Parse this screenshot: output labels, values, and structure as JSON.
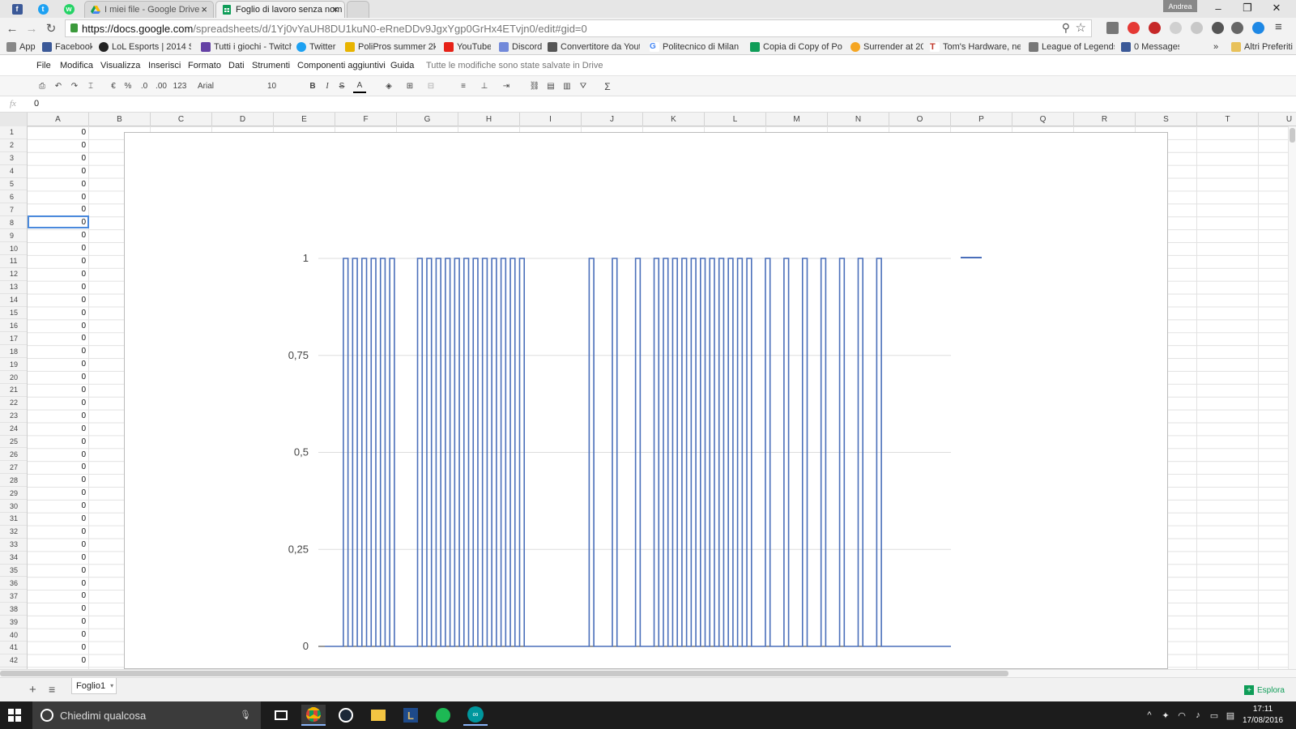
{
  "browser": {
    "user": "Andrea",
    "tabs": [
      {
        "label": "I miei file - Google Drive",
        "active": false
      },
      {
        "label": "Foglio di lavoro senza nom",
        "active": true
      }
    ],
    "url_host": "https://docs.google.com",
    "url_path": "/spreadsheets/d/1Yj0vYaUH8DU1kuN0-eRneDDv9JgxYgp0GrHx4ETvjn0/edit#gid=0",
    "bookmarks": [
      {
        "label": "App",
        "color": "#888888"
      },
      {
        "label": "Facebook",
        "color": "#3b5998"
      },
      {
        "label": "LoL Esports | 2014 Se",
        "color": "#222222"
      },
      {
        "label": "Tutti i giochi - Twitch",
        "color": "#6441a5"
      },
      {
        "label": "Twitter",
        "color": "#1da1f2"
      },
      {
        "label": "PoliPros summer 2k16",
        "color": "#e8b400"
      },
      {
        "label": "YouTube",
        "color": "#e62117"
      },
      {
        "label": "Discord",
        "color": "#7289da"
      },
      {
        "label": "Convertitore da Youtu",
        "color": "#555555"
      },
      {
        "label": "Politecnico di Milano",
        "color": "#4285f4"
      },
      {
        "label": "Copia di Copy of Poke",
        "color": "#0f9d58"
      },
      {
        "label": "Surrender at 20",
        "color": "#f5a623"
      },
      {
        "label": "Tom's Hardware, new",
        "color": "#c0392b"
      },
      {
        "label": "League of Legends",
        "color": "#555555"
      },
      {
        "label": "0 Messages",
        "color": "#3b5998"
      }
    ],
    "more_bookmarks": "»",
    "other_bookmarks": "Altri Preferiti"
  },
  "menu": {
    "items": [
      "File",
      "Modifica",
      "Visualizza",
      "Inserisci",
      "Formato",
      "Dati",
      "Strumenti",
      "Componenti aggiuntivi",
      "Guida"
    ],
    "save_status": "Tutte le modifiche sono state salvate in Drive"
  },
  "format_toolbar": {
    "currency": "€",
    "percent": "%",
    "dec_decrease": ".0",
    "dec_increase": ".00",
    "number_format": "123",
    "font": "Arial",
    "font_size": "10",
    "bold": "B",
    "italic": "I",
    "strike": "S",
    "text_color": "A",
    "functions": "Σ"
  },
  "formula_bar": {
    "fx": "fx",
    "value": "0"
  },
  "grid": {
    "columns": [
      "A",
      "B",
      "C",
      "D",
      "E",
      "F",
      "G",
      "H",
      "I",
      "J",
      "K",
      "L",
      "M",
      "N",
      "O",
      "P",
      "Q",
      "R",
      "S",
      "T",
      "U"
    ],
    "rows": [
      "1",
      "2",
      "3",
      "4",
      "5",
      "6",
      "7",
      "8",
      "9",
      "10",
      "11",
      "12",
      "13",
      "14",
      "15",
      "16",
      "17",
      "18",
      "19",
      "20",
      "21",
      "22",
      "23",
      "24",
      "25",
      "26",
      "27",
      "28",
      "29",
      "30",
      "31",
      "32",
      "33",
      "34",
      "35",
      "36",
      "37",
      "38",
      "39",
      "40",
      "41",
      "42"
    ],
    "column_a_values": [
      "0",
      "0",
      "0",
      "0",
      "0",
      "0",
      "0",
      "0",
      "0",
      "0",
      "0",
      "0",
      "0",
      "0",
      "0",
      "0",
      "0",
      "0",
      "0",
      "0",
      "0",
      "0",
      "0",
      "0",
      "0",
      "0",
      "0",
      "0",
      "0",
      "0",
      "0",
      "0",
      "0",
      "0",
      "0",
      "0",
      "0",
      "0",
      "0",
      "0",
      "0",
      "0"
    ],
    "selected_row": 8
  },
  "chart_data": {
    "type": "line",
    "title": "",
    "xlabel": "",
    "ylabel": "",
    "ylim": [
      0,
      1
    ],
    "yticks": [
      "0",
      "0,25",
      "0,5",
      "0,75",
      "1"
    ],
    "ytick_values": [
      0,
      0.25,
      0.5,
      0.75,
      1
    ],
    "grid": true,
    "legend": "right",
    "color": "#4a6fba",
    "x": [
      0,
      1,
      2,
      3,
      4,
      5,
      6,
      7,
      8,
      9,
      10,
      11,
      12,
      13,
      14,
      15,
      16,
      17,
      18,
      19,
      20,
      21,
      22,
      23,
      24,
      25,
      26,
      27,
      28,
      29,
      30,
      31,
      32,
      33,
      34,
      35,
      36,
      37,
      38,
      39,
      40,
      41,
      42,
      43,
      44,
      45,
      46,
      47,
      48,
      49,
      50,
      51,
      52,
      53,
      54,
      55,
      56,
      57,
      58,
      59,
      60,
      61,
      62,
      63,
      64,
      65,
      66,
      67,
      68,
      69,
      70,
      71,
      72,
      73,
      74,
      75,
      76,
      77,
      78,
      79,
      80,
      81,
      82,
      83,
      84,
      85,
      86,
      87,
      88,
      89,
      90,
      91,
      92,
      93,
      94,
      95,
      96,
      97,
      98,
      99,
      100,
      101,
      102,
      103,
      104,
      105,
      106,
      107,
      108,
      109,
      110,
      111,
      112,
      113,
      114,
      115,
      116,
      117,
      118,
      119,
      120,
      121,
      122,
      123,
      124,
      125,
      126,
      127,
      128,
      129,
      130,
      131,
      132,
      133,
      134,
      135
    ],
    "y": [
      0,
      0,
      0,
      0,
      1,
      0,
      1,
      0,
      1,
      0,
      1,
      0,
      1,
      0,
      1,
      0,
      0,
      0,
      0,
      0,
      1,
      0,
      1,
      0,
      1,
      0,
      1,
      0,
      1,
      0,
      1,
      0,
      1,
      0,
      1,
      0,
      1,
      0,
      1,
      0,
      1,
      0,
      1,
      0,
      0,
      0,
      0,
      0,
      0,
      0,
      0,
      0,
      0,
      0,
      0,
      0,
      0,
      1,
      0,
      0,
      0,
      0,
      1,
      0,
      0,
      0,
      0,
      1,
      0,
      0,
      0,
      1,
      0,
      1,
      0,
      1,
      0,
      1,
      0,
      1,
      0,
      1,
      0,
      1,
      0,
      1,
      0,
      1,
      0,
      1,
      0,
      1,
      0,
      0,
      0,
      1,
      0,
      0,
      0,
      1,
      0,
      0,
      0,
      1,
      0,
      0,
      0,
      1,
      0,
      0,
      0,
      1,
      0,
      0,
      0,
      1,
      0,
      0,
      0,
      1,
      0,
      0,
      0,
      0,
      0,
      0,
      0,
      0,
      0,
      0,
      0,
      0,
      0,
      0,
      0,
      0
    ]
  },
  "sheet": {
    "name": "Foglio1",
    "explore": "Esplora"
  },
  "taskbar": {
    "search_placeholder": "Chiedimi qualcosa",
    "time": "17:11",
    "date": "17/08/2016"
  }
}
